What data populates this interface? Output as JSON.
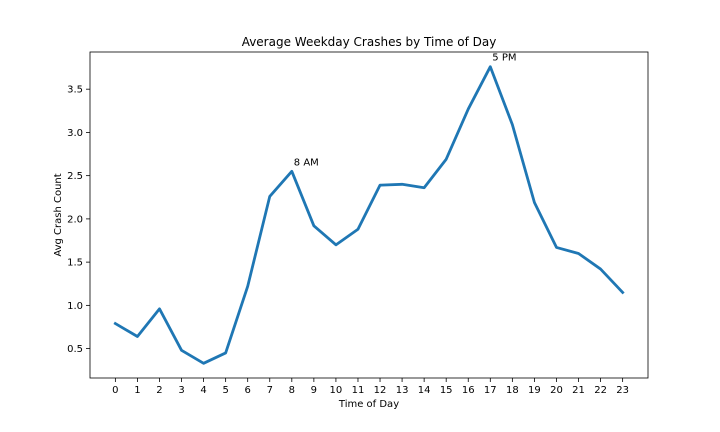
{
  "chart_data": {
    "type": "line",
    "title": "Average Weekday Crashes by Time of Day",
    "xlabel": "Time of Day",
    "ylabel": "Avg Crash Count",
    "x": [
      0,
      1,
      2,
      3,
      4,
      5,
      6,
      7,
      8,
      9,
      10,
      11,
      12,
      13,
      14,
      15,
      16,
      17,
      18,
      19,
      20,
      21,
      22,
      23
    ],
    "x_tick_labels": [
      "0",
      "1",
      "2",
      "3",
      "4",
      "5",
      "6",
      "7",
      "8",
      "9",
      "10",
      "11",
      "12",
      "13",
      "14",
      "15",
      "16",
      "17",
      "18",
      "19",
      "20",
      "21",
      "22",
      "23"
    ],
    "series": [
      {
        "color": "#1f77b4",
        "values": [
          0.79,
          0.64,
          0.96,
          0.48,
          0.33,
          0.45,
          1.22,
          2.26,
          2.55,
          1.92,
          1.7,
          1.88,
          2.39,
          2.4,
          2.36,
          2.69,
          3.27,
          3.76,
          3.09,
          2.19,
          1.67,
          1.6,
          1.42,
          1.15
        ]
      }
    ],
    "xlim": [
      -1.15,
      24.15
    ],
    "ylim": [
      0.16,
      3.93
    ],
    "y_ticks": [
      0.5,
      1.0,
      1.5,
      2.0,
      2.5,
      3.0,
      3.5
    ],
    "y_tick_labels": [
      "0.5",
      "1.0",
      "1.5",
      "2.0",
      "2.5",
      "3.0",
      "3.5"
    ],
    "grid": false,
    "annotations": [
      {
        "x": 8,
        "y": 2.55,
        "text": "8 AM"
      },
      {
        "x": 17,
        "y": 3.76,
        "text": "5 PM"
      }
    ]
  }
}
